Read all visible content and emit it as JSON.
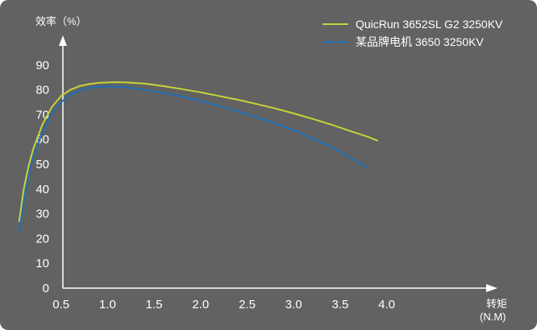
{
  "chart_data": {
    "type": "line",
    "ylabel": "效率（%）",
    "xlabel": "转矩",
    "xlabel_unit": "(N.M)",
    "xlim": [
      0,
      4.0
    ],
    "ylim": [
      0,
      90
    ],
    "x_ticks": [
      "0.5",
      "1.0",
      "1.5",
      "2.0",
      "2.5",
      "3.0",
      "3.5",
      "4.0"
    ],
    "y_ticks": [
      "0",
      "10",
      "20",
      "30",
      "40",
      "50",
      "60",
      "70",
      "80",
      "90"
    ],
    "grid": false,
    "legend_position": "top-right",
    "series": [
      {
        "name": "QuicRun 3652SL G2 3250KV",
        "color": "#c8d43a",
        "x": [
          0.05,
          0.1,
          0.15,
          0.2,
          0.3,
          0.4,
          0.5,
          0.6,
          0.7,
          0.8,
          0.9,
          1.0,
          1.1,
          1.2,
          1.4,
          1.6,
          1.8,
          2.0,
          2.2,
          2.4,
          2.6,
          2.8,
          3.0,
          3.2,
          3.4,
          3.6,
          3.8,
          3.9
        ],
        "y": [
          27,
          40,
          49,
          56,
          66,
          73,
          77.5,
          80,
          81.5,
          82.3,
          82.8,
          83,
          83.1,
          83,
          82.5,
          81.5,
          80.3,
          79,
          77.5,
          76,
          74.3,
          72.5,
          70.5,
          68.3,
          66,
          63.5,
          61,
          59.5
        ]
      },
      {
        "name": "某品牌电机 3650 3250KV",
        "color": "#1e6fb5",
        "x": [
          0.05,
          0.1,
          0.15,
          0.2,
          0.3,
          0.4,
          0.5,
          0.6,
          0.7,
          0.8,
          0.9,
          1.0,
          1.1,
          1.2,
          1.4,
          1.6,
          1.8,
          2.0,
          2.2,
          2.4,
          2.6,
          2.8,
          3.0,
          3.2,
          3.4,
          3.6,
          3.8
        ],
        "y": [
          23,
          35,
          45,
          53,
          63,
          70.5,
          75,
          78,
          79.8,
          80.8,
          81.2,
          81.4,
          81.3,
          81,
          80,
          78.8,
          77.3,
          75.5,
          73.5,
          71.3,
          69,
          66.5,
          63.8,
          60.5,
          57,
          53,
          48.5
        ]
      }
    ]
  }
}
